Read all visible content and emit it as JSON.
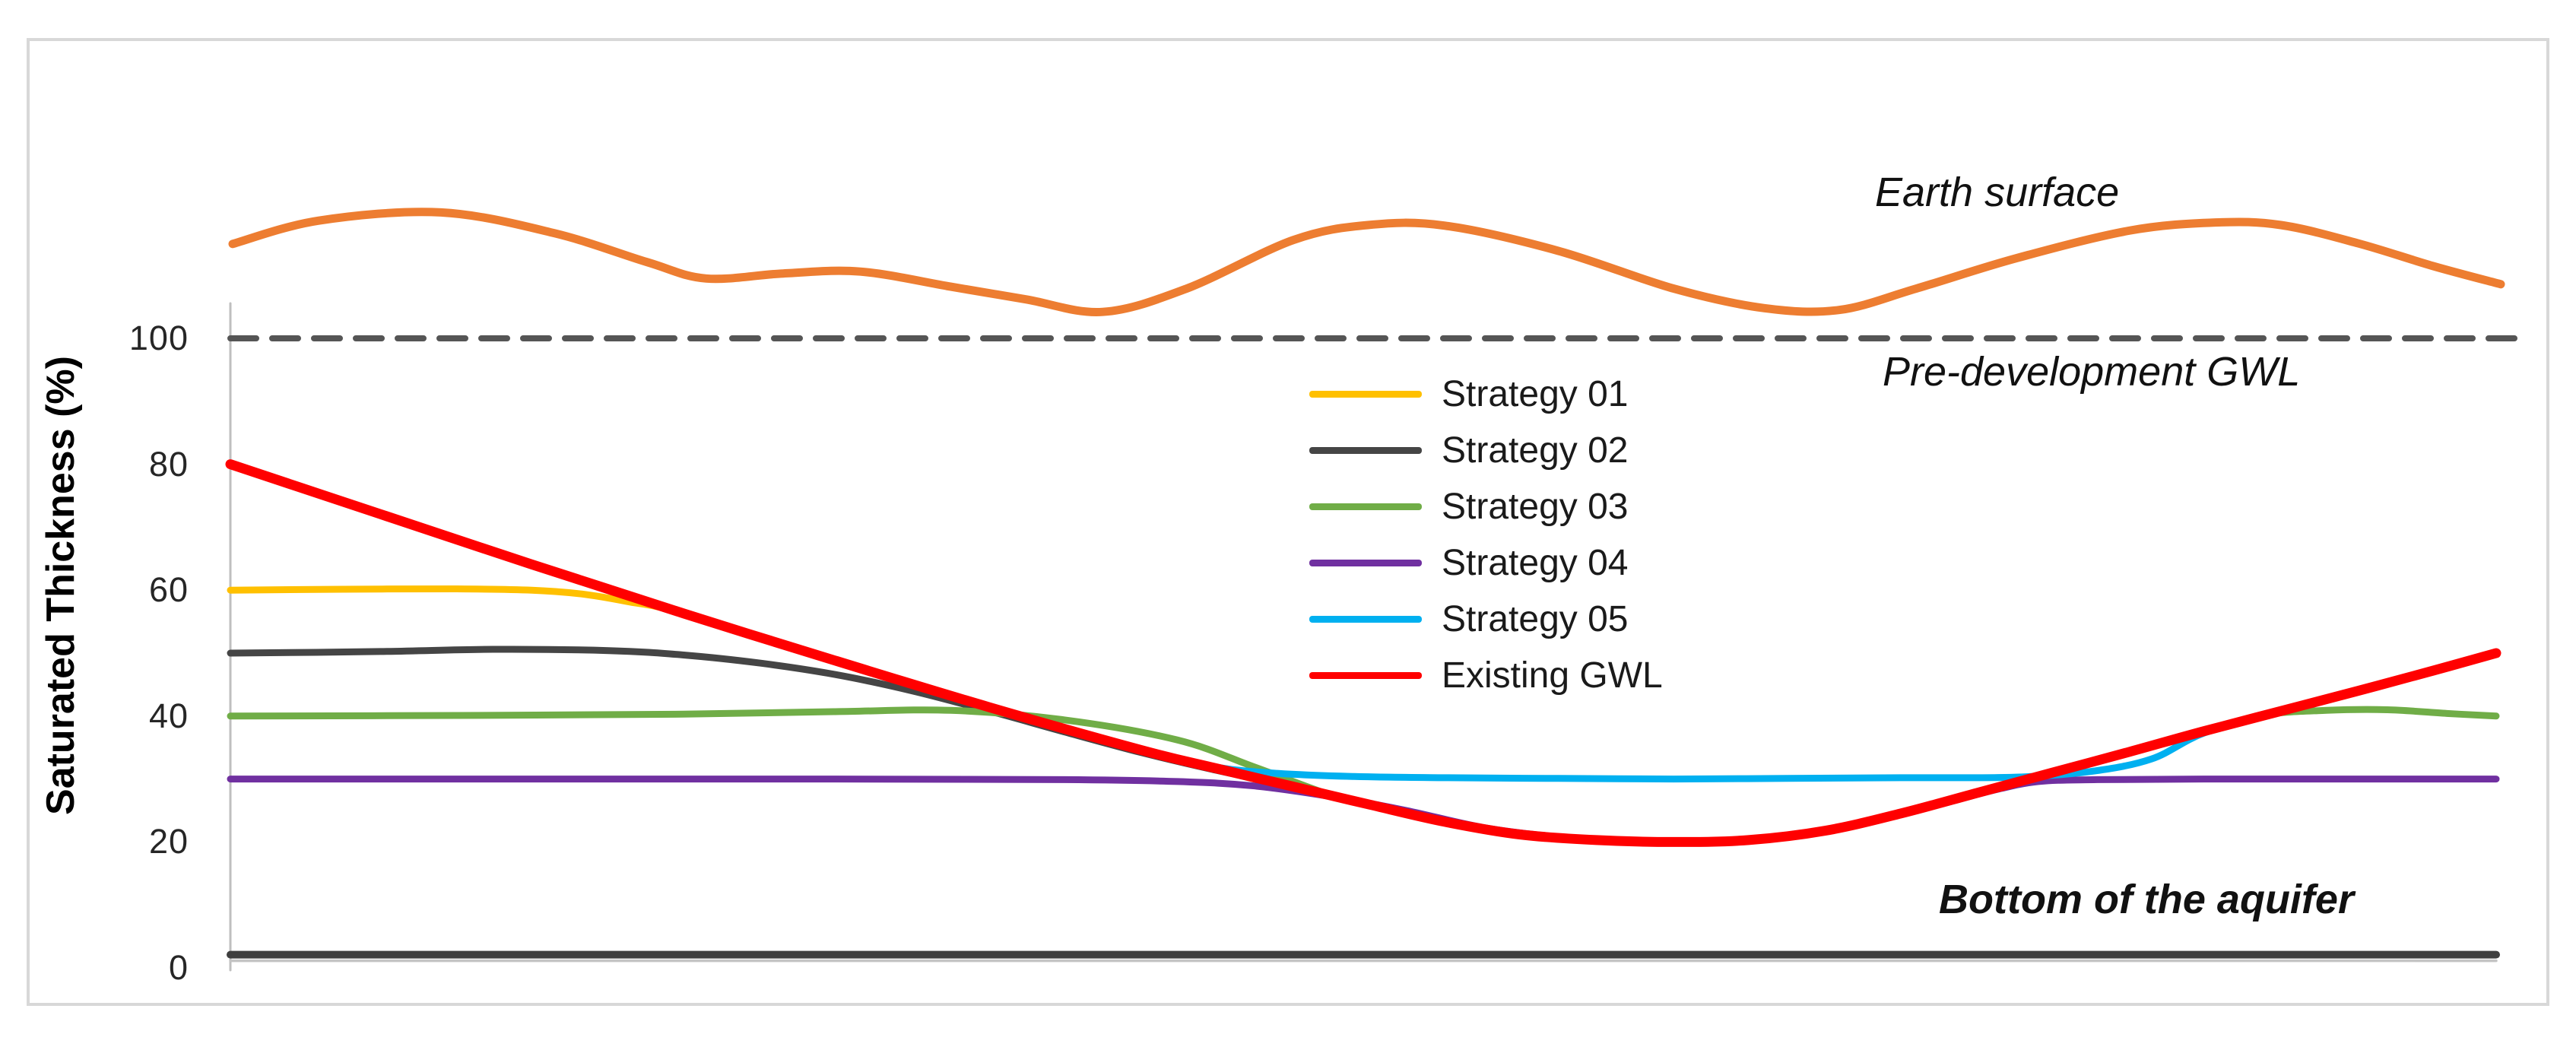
{
  "y_axis": {
    "title": "Saturated Thickness (%)",
    "tick_labels": [
      "100",
      "80",
      "60",
      "40",
      "20",
      "0"
    ]
  },
  "legend": {
    "items": [
      {
        "label": "Strategy 01",
        "color": "#FFC000"
      },
      {
        "label": "Strategy 02",
        "color": "#454545"
      },
      {
        "label": "Strategy 03",
        "color": "#70AD47"
      },
      {
        "label": "Strategy 04",
        "color": "#7030A0"
      },
      {
        "label": "Strategy 05",
        "color": "#00B0F0"
      },
      {
        "label": "Existing GWL",
        "color": "#FF0000"
      }
    ]
  },
  "annotations": {
    "earth_surface": "Earth surface",
    "pre_development": "Pre-development GWL",
    "bottom_aquifer": "Bottom of the aquifer"
  },
  "colors": {
    "earth_surface": "#ED7D31",
    "pre_development_gwl": "#555555",
    "bottom_of_aquifer": "#3F3F3F",
    "bottom_of_aquifer_shadow": "#C4C4C4",
    "strategy_01": "#FFC000",
    "strategy_02": "#454545",
    "strategy_03": "#70AD47",
    "strategy_04": "#7030A0",
    "strategy_05": "#00B0F0",
    "existing_gwl": "#FF0000",
    "axis_line": "#BFBFBF",
    "frame_border": "#D8D8D8"
  },
  "chart_data": {
    "type": "line",
    "title": "",
    "xlabel": "",
    "ylabel": "Saturated Thickness (%)",
    "x_unit": "relative distance along section (0-100, no axis labels shown)",
    "y_unit": "Saturated Thickness (%)",
    "ylim": [
      0,
      125
    ],
    "y_ticks": [
      100,
      80,
      60,
      40,
      20,
      0
    ],
    "grid": false,
    "legend_position": "center of plot, stacked",
    "series": [
      {
        "key": "earth_surface",
        "name": "Earth surface",
        "color": "#ED7D31",
        "width": 11,
        "style": "solid",
        "points": [
          [
            0.1,
            115
          ],
          [
            3.9,
            118.7
          ],
          [
            9.3,
            120
          ],
          [
            14.3,
            116.7
          ],
          [
            18.4,
            112.1
          ],
          [
            21,
            109.5
          ],
          [
            24.4,
            110.3
          ],
          [
            27.8,
            110.6
          ],
          [
            31.8,
            108.2
          ],
          [
            35.1,
            106.2
          ],
          [
            38.5,
            104.2
          ],
          [
            42.2,
            107.9
          ],
          [
            46.9,
            115.6
          ],
          [
            50.2,
            118
          ],
          [
            53.6,
            117.9
          ],
          [
            58.6,
            113.9
          ],
          [
            63.7,
            107.9
          ],
          [
            67.7,
            104.8
          ],
          [
            71,
            104.5
          ],
          [
            74.4,
            107.9
          ],
          [
            78.8,
            112.7
          ],
          [
            83.8,
            117.1
          ],
          [
            87.6,
            118.4
          ],
          [
            90.5,
            118
          ],
          [
            93.9,
            115.1
          ],
          [
            97.2,
            111.5
          ],
          [
            100.2,
            108.6
          ]
        ]
      },
      {
        "key": "pre_development_gwl",
        "name": "Pre-development GWL",
        "color": "#555555",
        "width": 8,
        "style": "dashed",
        "points": [
          [
            0,
            100
          ],
          [
            101,
            100
          ]
        ]
      },
      {
        "key": "bottom_of_aquifer",
        "name": "Bottom of the aquifer",
        "color": "#3F3F3F",
        "width": 10,
        "style": "solid",
        "shadow_color": "#C4C4C4",
        "points": [
          [
            0,
            2.1
          ],
          [
            100,
            2.1
          ]
        ]
      },
      {
        "key": "strategy_01",
        "name": "Strategy 01",
        "color": "#FFC000",
        "width": 9,
        "style": "solid",
        "points": [
          [
            0,
            60
          ],
          [
            5,
            60.15
          ],
          [
            10,
            60.2
          ],
          [
            13.3,
            60
          ],
          [
            15.5,
            59.4
          ],
          [
            17.5,
            58.2
          ],
          [
            20,
            56.3
          ],
          [
            26.7,
            48.8
          ],
          [
            33.5,
            41.4
          ],
          [
            40.2,
            34.6
          ],
          [
            43.5,
            31.7
          ],
          [
            46.9,
            28.8
          ],
          [
            50.2,
            26
          ],
          [
            53.6,
            23.2
          ],
          [
            56.9,
            21.2
          ],
          [
            60.3,
            20.3
          ],
          [
            63.7,
            20
          ],
          [
            67,
            20.3
          ],
          [
            70.4,
            21.8
          ],
          [
            73.7,
            24.5
          ],
          [
            77.1,
            27.8
          ],
          [
            80.4,
            31
          ],
          [
            83.8,
            34.3
          ],
          [
            87.1,
            37.6
          ],
          [
            90.5,
            40.8
          ],
          [
            93.9,
            44
          ],
          [
            97.2,
            47.2
          ],
          [
            100,
            50
          ]
        ]
      },
      {
        "key": "strategy_02",
        "name": "Strategy 02",
        "color": "#454545",
        "width": 9,
        "style": "solid",
        "points": [
          [
            0,
            50
          ],
          [
            6.6,
            50.25
          ],
          [
            11.6,
            50.6
          ],
          [
            16.7,
            50.4
          ],
          [
            20,
            49.7
          ],
          [
            23.4,
            48.4
          ],
          [
            26.7,
            46.6
          ],
          [
            30.1,
            44
          ],
          [
            33.5,
            40.8
          ],
          [
            36.8,
            37.5
          ],
          [
            40.2,
            34.2
          ],
          [
            43.5,
            31.4
          ],
          [
            46.9,
            28.8
          ],
          [
            50.2,
            26
          ],
          [
            53.6,
            23.2
          ],
          [
            56.9,
            21.2
          ],
          [
            60.3,
            20.3
          ],
          [
            63.7,
            20
          ],
          [
            67,
            20.3
          ],
          [
            70.4,
            21.8
          ],
          [
            73.7,
            24.5
          ],
          [
            77.1,
            27.8
          ],
          [
            80.4,
            31
          ],
          [
            83.8,
            34.3
          ],
          [
            87.1,
            37.6
          ],
          [
            90.5,
            40.8
          ],
          [
            93.9,
            44
          ],
          [
            97.2,
            47.2
          ],
          [
            100,
            50
          ]
        ]
      },
      {
        "key": "strategy_03",
        "name": "Strategy 03",
        "color": "#70AD47",
        "width": 9,
        "style": "solid",
        "points": [
          [
            0,
            40
          ],
          [
            10,
            40.1
          ],
          [
            20,
            40.3
          ],
          [
            26.7,
            40.7
          ],
          [
            31.8,
            40.9
          ],
          [
            36.8,
            39.4
          ],
          [
            41.8,
            36.2
          ],
          [
            45.2,
            31.9
          ],
          [
            48.6,
            27.4
          ],
          [
            50.2,
            26
          ],
          [
            53.6,
            23.2
          ],
          [
            56.9,
            21.2
          ],
          [
            60.3,
            20.3
          ],
          [
            63.7,
            20
          ],
          [
            67,
            20.3
          ],
          [
            70.4,
            21.8
          ],
          [
            73.7,
            24.5
          ],
          [
            77.1,
            27.8
          ],
          [
            80.4,
            31
          ],
          [
            83.8,
            34.3
          ],
          [
            87.1,
            37.6
          ],
          [
            89.8,
            40.2
          ],
          [
            92.5,
            40.9
          ],
          [
            95.2,
            41
          ],
          [
            97.9,
            40.4
          ],
          [
            100,
            40
          ]
        ]
      },
      {
        "key": "strategy_04",
        "name": "Strategy 04",
        "color": "#7030A0",
        "width": 9,
        "style": "solid",
        "points": [
          [
            0,
            30
          ],
          [
            13.3,
            30
          ],
          [
            26.7,
            30
          ],
          [
            36.8,
            29.9
          ],
          [
            41.8,
            29.6
          ],
          [
            45.2,
            28.9
          ],
          [
            48.6,
            27.2
          ],
          [
            51.9,
            25
          ],
          [
            55.3,
            22.3
          ],
          [
            58.6,
            20.8
          ],
          [
            62,
            20
          ],
          [
            65.3,
            20
          ],
          [
            68.7,
            20.9
          ],
          [
            72,
            22.9
          ],
          [
            75.4,
            25.9
          ],
          [
            77.8,
            28.2
          ],
          [
            79.8,
            29.6
          ],
          [
            82.4,
            29.9
          ],
          [
            87.1,
            30
          ],
          [
            93.9,
            30
          ],
          [
            100,
            30
          ]
        ]
      },
      {
        "key": "strategy_05",
        "name": "Strategy 05",
        "color": "#00B0F0",
        "width": 9,
        "style": "solid",
        "points": [
          [
            40.2,
            34.6
          ],
          [
            43.5,
            31.9
          ],
          [
            46.2,
            30.9
          ],
          [
            49.6,
            30.4
          ],
          [
            53.6,
            30.2
          ],
          [
            58.6,
            30.1
          ],
          [
            63.7,
            30
          ],
          [
            68.7,
            30.1
          ],
          [
            73.7,
            30.2
          ],
          [
            78.8,
            30.3
          ],
          [
            82.1,
            31.2
          ],
          [
            84.8,
            33.2
          ],
          [
            87.1,
            37.3
          ],
          [
            90.5,
            40.8
          ],
          [
            93.9,
            44
          ],
          [
            97.2,
            47.2
          ],
          [
            100,
            50
          ]
        ]
      },
      {
        "key": "existing_gwl",
        "name": "Existing GWL",
        "color": "#FF0000",
        "width": 13,
        "style": "solid",
        "points": [
          [
            0,
            80
          ],
          [
            6.6,
            72.1
          ],
          [
            13.3,
            64.1
          ],
          [
            20,
            56.3
          ],
          [
            26.7,
            48.8
          ],
          [
            33.5,
            41.4
          ],
          [
            40.2,
            34.6
          ],
          [
            43.5,
            31.7
          ],
          [
            46.9,
            28.8
          ],
          [
            50.2,
            26
          ],
          [
            53.6,
            23.2
          ],
          [
            56.9,
            21.2
          ],
          [
            60.3,
            20.3
          ],
          [
            63.7,
            20
          ],
          [
            67,
            20.3
          ],
          [
            70.4,
            21.8
          ],
          [
            73.7,
            24.5
          ],
          [
            77.1,
            27.8
          ],
          [
            80.4,
            31
          ],
          [
            83.8,
            34.3
          ],
          [
            87.1,
            37.6
          ],
          [
            90.5,
            40.8
          ],
          [
            93.9,
            44
          ],
          [
            97.2,
            47.2
          ],
          [
            100,
            50
          ]
        ]
      }
    ]
  }
}
